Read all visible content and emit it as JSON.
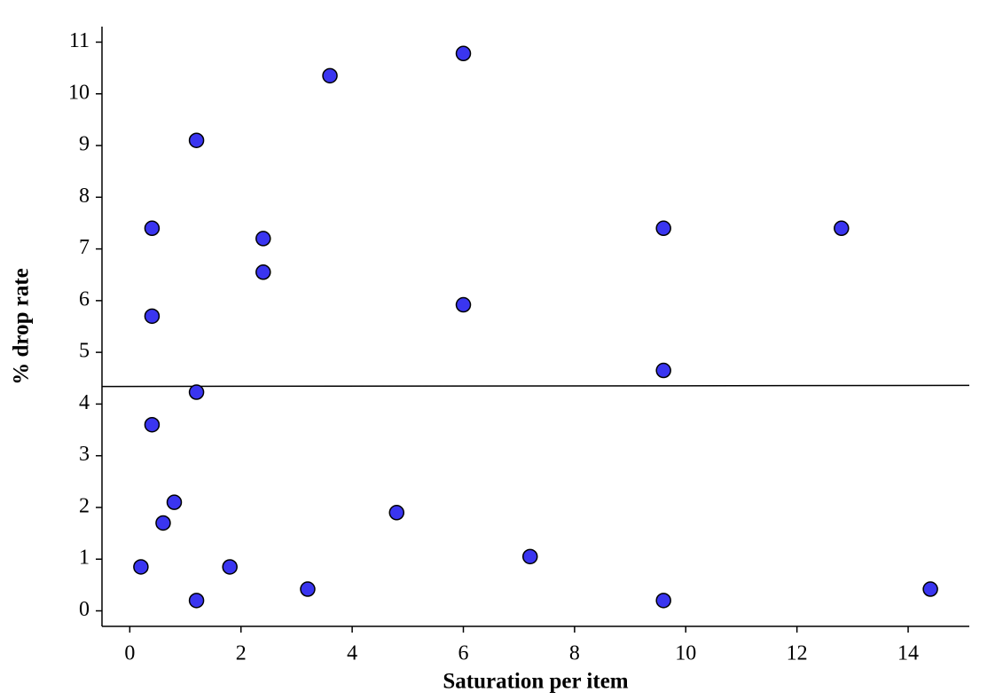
{
  "chart_data": {
    "type": "scatter",
    "x_label": "Saturation per item",
    "y_label": "% drop rate",
    "series": [
      {
        "color": "#3a35f0",
        "x": [
          0.2,
          0.4,
          0.4,
          0.4,
          0.6,
          0.8,
          1.2,
          1.2,
          1.2,
          1.8,
          2.4,
          2.4,
          3.2,
          3.6,
          4.8,
          6,
          6,
          7.2,
          9.6,
          9.6,
          9.6,
          12.8,
          14.4
        ],
        "values": [
          0.85,
          7.4,
          5.7,
          3.6,
          1.7,
          2.1,
          9.1,
          4.23,
          0.2,
          0.85,
          7.2,
          6.55,
          0.42,
          10.35,
          1.9,
          10.78,
          5.92,
          1.05,
          7.4,
          4.65,
          0.2,
          7.4,
          0.42
        ]
      }
    ],
    "trendline": {
      "x": [
        -0.5,
        15.1
      ],
      "values": [
        4.34,
        4.36
      ],
      "color": "#000000"
    },
    "xlim": [
      -0.5,
      15.1
    ],
    "ylim": [
      -0.3,
      11.3
    ],
    "xticks": [
      0,
      2,
      4,
      6,
      8,
      10,
      12,
      14
    ],
    "yticks": [
      0,
      1,
      2,
      3,
      4,
      5,
      6,
      7,
      8,
      9,
      10,
      11
    ],
    "grid": false
  }
}
